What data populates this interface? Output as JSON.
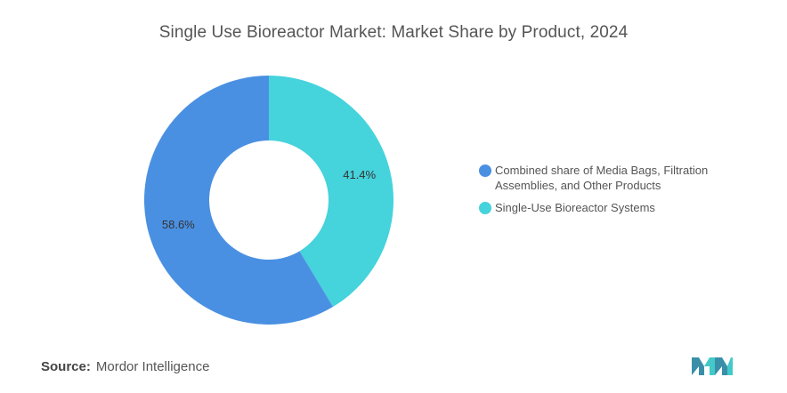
{
  "title": "Single Use Bioreactor Market: Market Share by Product, 2024",
  "source": {
    "label": "Source:",
    "value": "Mordor Intelligence"
  },
  "colors": {
    "series_1": "#4a90e2",
    "series_2": "#45d3dc",
    "logo_dark": "#3a8fa8",
    "logo_light": "#43c9c9"
  },
  "icons": {
    "brand_logo": "mordor-intelligence-logo-icon"
  },
  "chart_data": {
    "type": "pie",
    "donut": true,
    "title": "Single Use Bioreactor Market: Market Share by Product, 2024",
    "series": [
      {
        "name": "Combined share of Media Bags, Filtration Assemblies, and Other Products",
        "value": 58.6,
        "label": "58.6%",
        "color": "#4a90e2"
      },
      {
        "name": "Single-Use Bioreactor Systems",
        "value": 41.4,
        "label": "41.4%",
        "color": "#45d3dc"
      }
    ],
    "legend_position": "right"
  }
}
